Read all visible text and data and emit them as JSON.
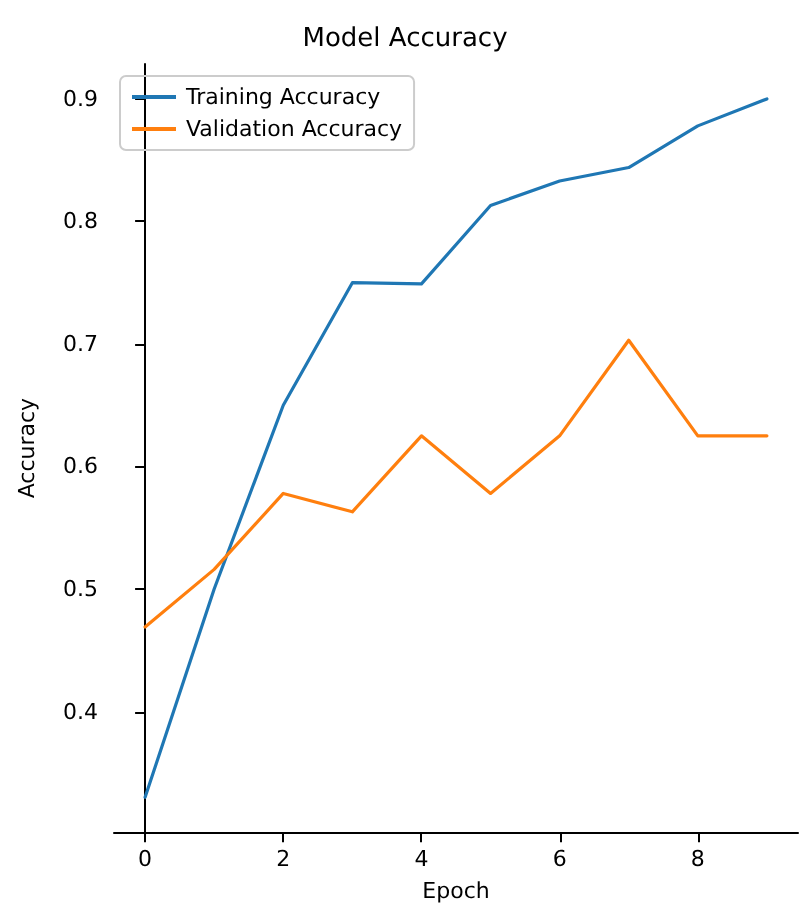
{
  "chart_data": {
    "type": "line",
    "title": "Model Accuracy",
    "xlabel": "Epoch",
    "ylabel": "Accuracy",
    "x": [
      0,
      1,
      2,
      3,
      4,
      5,
      6,
      7,
      8,
      9
    ],
    "series": [
      {
        "name": "Training Accuracy",
        "color": "#1f77b4",
        "values": [
          0.33,
          0.5,
          0.65,
          0.75,
          0.749,
          0.813,
          0.833,
          0.844,
          0.878,
          0.9
        ]
      },
      {
        "name": "Validation Accuracy",
        "color": "#ff7f0e",
        "values": [
          0.469,
          0.516,
          0.578,
          0.563,
          0.625,
          0.578,
          0.625,
          0.703,
          0.625,
          0.625
        ]
      }
    ],
    "xlim": [
      -0.45,
      9.45
    ],
    "xticks": [
      0,
      2,
      4,
      6,
      8
    ],
    "ylim": [
      0.3015,
      0.9285
    ],
    "yticks": [
      0.4,
      0.5,
      0.6,
      0.7,
      0.8,
      0.9
    ],
    "grid": false,
    "legend": "top left",
    "marker": "none",
    "line_style": "solid"
  }
}
